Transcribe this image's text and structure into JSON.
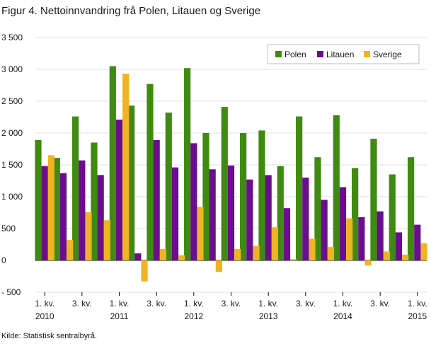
{
  "title": "Figur 4. Nettoinnvandring frå Polen, Litauen og Sverige",
  "source": "Kilde: Statistisk sentralbyrå.",
  "chart_data": {
    "type": "bar",
    "title": "Figur 4. Nettoinnvandring frå Polen, Litauen og Sverige",
    "xlabel": "",
    "ylabel": "",
    "ylim": [
      -500,
      3500
    ],
    "yticks": [
      -500,
      0,
      500,
      1000,
      1500,
      2000,
      2500,
      3000,
      3500
    ],
    "ytick_labels": [
      "- 500",
      "0",
      "500",
      "1 000",
      "1 500",
      "2 000",
      "2 500",
      "3 000",
      "3 500"
    ],
    "grid": true,
    "legend_position": "top-right",
    "categories": [
      "2010 K1",
      "2010 K2",
      "2010 K3",
      "2010 K4",
      "2011 K1",
      "2011 K2",
      "2011 K3",
      "2011 K4",
      "2012 K1",
      "2012 K2",
      "2012 K3",
      "2012 K4",
      "2013 K1",
      "2013 K2",
      "2013 K3",
      "2013 K4",
      "2014 K1",
      "2014 K2",
      "2014 K3",
      "2014 K4",
      "2015 K1"
    ],
    "x_tick_labels": [
      {
        "index": 0,
        "line1": "1. kv.",
        "line2": "2010"
      },
      {
        "index": 2,
        "line1": "3. kv.",
        "line2": ""
      },
      {
        "index": 4,
        "line1": "1. kv.",
        "line2": "2011"
      },
      {
        "index": 6,
        "line1": "3. kv.",
        "line2": ""
      },
      {
        "index": 8,
        "line1": "1. kv.",
        "line2": "2012"
      },
      {
        "index": 10,
        "line1": "3. kv.",
        "line2": ""
      },
      {
        "index": 12,
        "line1": "1. kv.",
        "line2": "2013"
      },
      {
        "index": 14,
        "line1": "3. kv.",
        "line2": ""
      },
      {
        "index": 16,
        "line1": "1. kv.",
        "line2": "2014"
      },
      {
        "index": 18,
        "line1": "3. kv.",
        "line2": ""
      },
      {
        "index": 20,
        "line1": "1. kv.",
        "line2": "2015"
      }
    ],
    "series": [
      {
        "name": "Polen",
        "color": "#3f8a10",
        "values": [
          1890,
          1610,
          2260,
          1850,
          3050,
          2430,
          2770,
          2320,
          3020,
          2000,
          2410,
          2000,
          2040,
          1480,
          2260,
          1620,
          2280,
          1450,
          1910,
          1350,
          1620
        ]
      },
      {
        "name": "Litauen",
        "color": "#6a0e8e",
        "values": [
          1480,
          1370,
          1570,
          1340,
          2210,
          110,
          1890,
          1460,
          1840,
          1430,
          1490,
          1270,
          1340,
          820,
          1300,
          950,
          1150,
          680,
          770,
          440,
          560
        ]
      },
      {
        "name": "Sverige",
        "color": "#f0b323",
        "values": [
          1650,
          320,
          760,
          630,
          2930,
          -330,
          180,
          80,
          840,
          -180,
          180,
          230,
          520,
          20,
          340,
          210,
          660,
          -80,
          140,
          90,
          270
        ]
      }
    ]
  }
}
